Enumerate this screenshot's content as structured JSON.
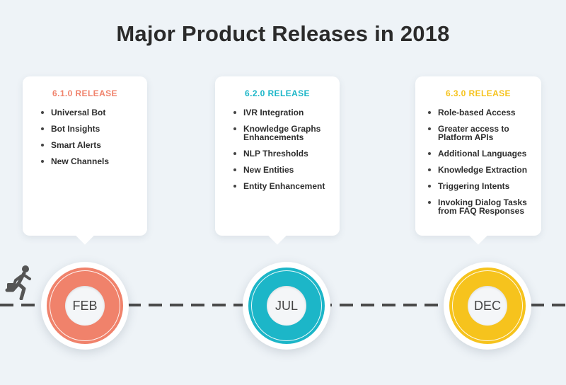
{
  "title": "Major Product Releases in 2018",
  "releases": [
    {
      "heading": "6.1.0 RELEASE",
      "month": "FEB",
      "color": "#f0826b",
      "items": [
        "Universal Bot",
        "Bot Insights",
        "Smart Alerts",
        "New Channels"
      ]
    },
    {
      "heading": "6.2.0 RELEASE",
      "month": "JUL",
      "color": "#1cb6c8",
      "items": [
        "IVR Integration",
        "Knowledge Graphs Enhancements",
        "NLP Thresholds",
        "New Entities",
        "Entity Enhancement"
      ]
    },
    {
      "heading": "6.3.0 RELEASE",
      "month": "DEC",
      "color": "#f6c31d",
      "items": [
        "Role-based Access",
        "Greater access to Platform APIs",
        "Additional Languages",
        "Knowledge Extraction",
        "Triggering Intents",
        "Invoking Dialog Tasks from FAQ Responses"
      ]
    }
  ],
  "icons": {
    "runner": "running-person-icon"
  }
}
